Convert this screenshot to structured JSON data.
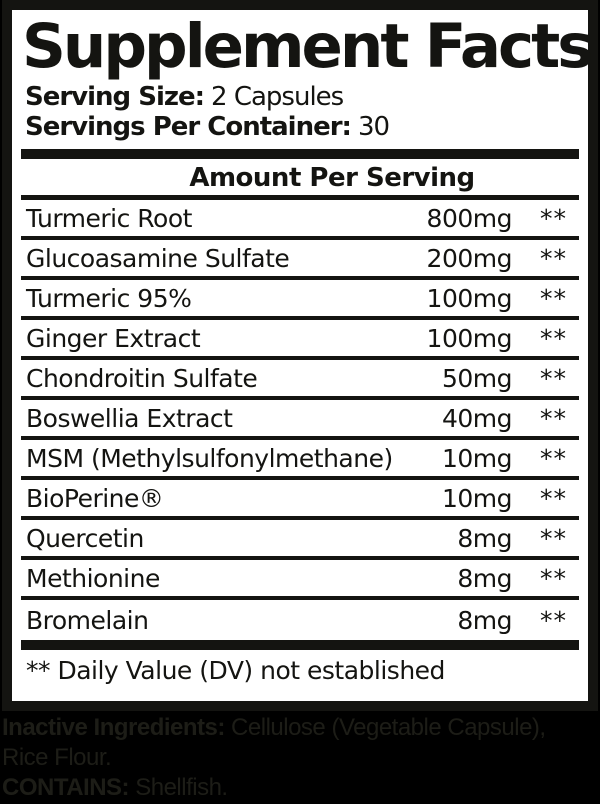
{
  "label": {
    "title": "Supplement Facts",
    "serving_size_label": "Serving Size:",
    "serving_size_value": "2 Capsules",
    "servings_per_container_label": "Servings Per Container:",
    "servings_per_container_value": "30",
    "amount_header": "Amount Per Serving",
    "rows": [
      {
        "name": "Turmeric Root",
        "amount": "800mg",
        "dv": "**"
      },
      {
        "name": "Glucoasamine Sulfate",
        "amount": "200mg",
        "dv": "**"
      },
      {
        "name": "Turmeric 95%",
        "amount": "100mg",
        "dv": "**"
      },
      {
        "name": "Ginger Extract",
        "amount": "100mg",
        "dv": "**"
      },
      {
        "name": "Chondroitin Sulfate",
        "amount": "50mg",
        "dv": "**"
      },
      {
        "name": "Boswellia Extract",
        "amount": "40mg",
        "dv": "**"
      },
      {
        "name": "MSM (Methylsulfonylmethane)",
        "amount": "10mg",
        "dv": "**"
      },
      {
        "name": "BioPerine®",
        "amount": "10mg",
        "dv": "**"
      },
      {
        "name": "Quercetin",
        "amount": "8mg",
        "dv": "**"
      },
      {
        "name": "Methionine",
        "amount": "8mg",
        "dv": "**"
      },
      {
        "name": "Bromelain",
        "amount": "8mg",
        "dv": "**"
      }
    ],
    "footnote": "** Daily Value (DV) not established"
  },
  "footer": {
    "inactive_label": "Inactive Ingredients:",
    "inactive_value": " Cellulose (Vegetable Capsule),",
    "inactive_line2": "Rice Flour.",
    "contains_label": "CONTAINS:",
    "contains_value": " Shellfish."
  },
  "colors": {
    "ink": "#141411",
    "panel_background": "#ffffff",
    "page_background": "#000000",
    "footer_text": "#1d1d17"
  }
}
